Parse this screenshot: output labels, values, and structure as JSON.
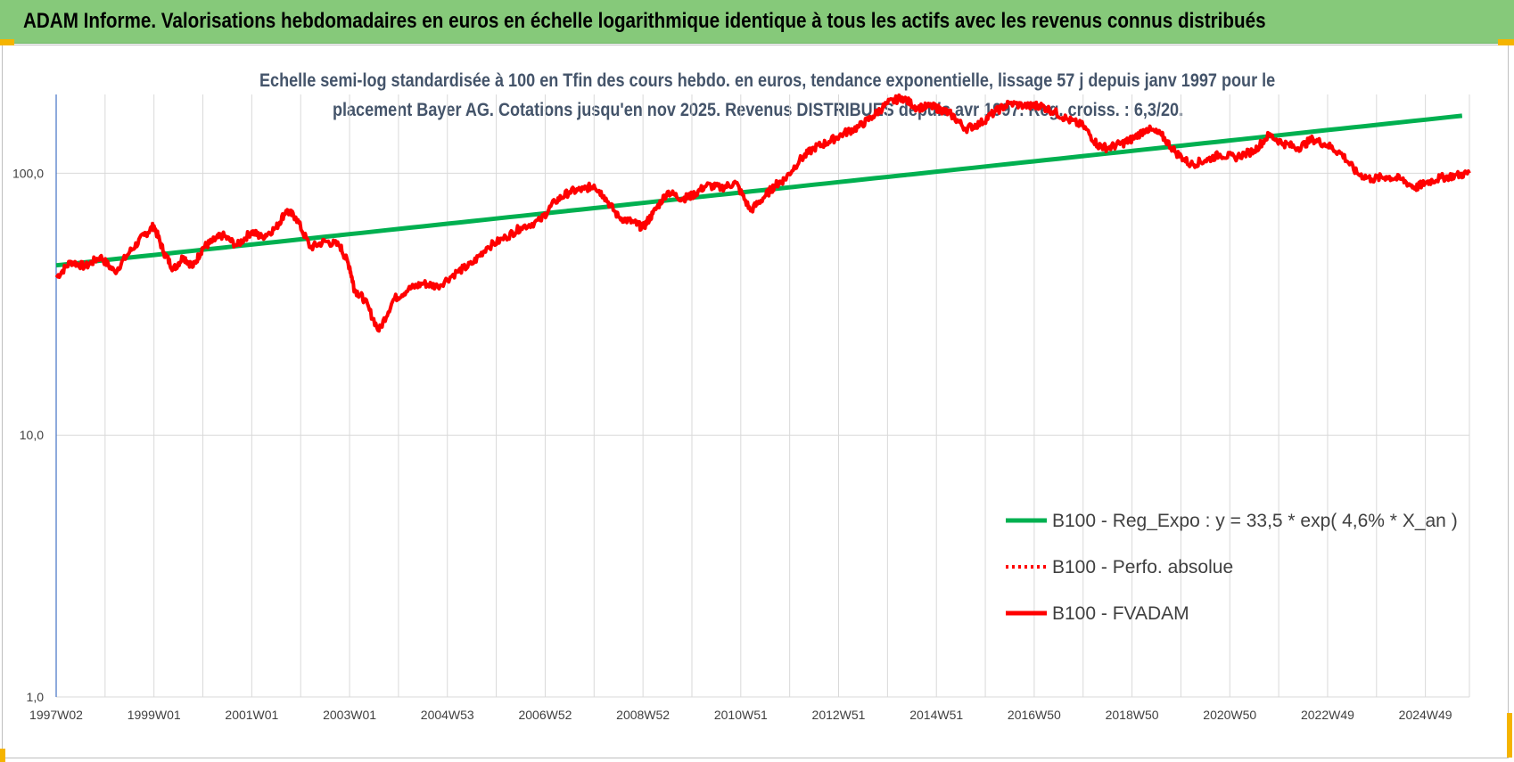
{
  "header": {
    "title": "ADAM Informe. Valorisations hebdomadaires en euros en échelle logarithmique identique à tous les actifs avec les revenus connus distribués"
  },
  "colors": {
    "banner": "#86c97a",
    "regression": "#00b050",
    "fvadam": "#ff0000",
    "title_text": "#44546a",
    "grid": "#d9d9d9",
    "handle": "#f5b400"
  },
  "chart_data": {
    "type": "line",
    "title_line1": "Echelle semi-log standardisée à 100 en Tfin des cours hebdo. en euros, tendance exponentielle, lissage 57 j depuis janv 1997 pour le",
    "title_line2": "placement Bayer AG. Cotations jusqu'en nov 2025. Revenus DISTRIBUES depuis avr 1997. Reg. croiss. : 6,3/20.",
    "y_scale": "log",
    "ylim": [
      1,
      200
    ],
    "y_ticks": [
      1,
      10,
      100
    ],
    "y_tick_labels": [
      "1,0",
      "10,0",
      "100,0"
    ],
    "xlim": [
      1997.0,
      2025.9
    ],
    "x_tick_labels": [
      "1997W02",
      "1999W01",
      "2001W01",
      "2003W01",
      "2004W53",
      "2006W52",
      "2008W52",
      "2010W51",
      "2012W51",
      "2014W51",
      "2016W50",
      "2018W50",
      "2020W50",
      "2022W49",
      "2024W49"
    ],
    "x_tick_years": [
      1997.0,
      1999.0,
      2001.0,
      2003.0,
      2005.0,
      2007.0,
      2009.0,
      2011.0,
      2013.0,
      2015.0,
      2017.0,
      2019.0,
      2021.0,
      2023.0,
      2025.0
    ],
    "grid": "vertical",
    "legend_position": "bottom-right",
    "legend": [
      "B100 - Reg_Expo : y = 33,5 * exp( 4,6% *  X_an )",
      "B100 - Perfo. absolue",
      "B100 - FVADAM"
    ],
    "series": [
      {
        "name": "B100 - Reg_Expo : y = 33,5 * exp( 4,6% *  X_an )",
        "style": "solid",
        "x": [
          1997.0,
          2025.9
        ],
        "values": [
          44.5,
          167
        ]
      },
      {
        "name": "B100 - FVADAM",
        "style": "solid",
        "x": [
          1997.0,
          1997.3,
          1997.6,
          1997.9,
          1998.2,
          1998.5,
          1998.8,
          1999.0,
          1999.2,
          1999.4,
          1999.6,
          1999.8,
          2000.0,
          2000.2,
          2000.4,
          2000.7,
          2001.0,
          2001.2,
          2001.5,
          2001.7,
          2001.9,
          2002.2,
          2002.5,
          2002.8,
          2003.0,
          2003.1,
          2003.3,
          2003.6,
          2003.9,
          2004.2,
          2004.5,
          2004.8,
          2005.2,
          2005.5,
          2005.8,
          2006.2,
          2006.5,
          2006.9,
          2007.2,
          2007.5,
          2007.8,
          2008.0,
          2008.2,
          2008.5,
          2008.8,
          2009.0,
          2009.2,
          2009.5,
          2009.8,
          2010.0,
          2010.3,
          2010.6,
          2010.9,
          2011.2,
          2011.5,
          2011.7,
          2011.9,
          2012.2,
          2012.5,
          2012.8,
          2013.1,
          2013.4,
          2013.7,
          2014.0,
          2014.3,
          2014.6,
          2014.9,
          2015.1,
          2015.3,
          2015.6,
          2015.9,
          2016.2,
          2016.5,
          2016.9,
          2017.1,
          2017.4,
          2017.7,
          2018.0,
          2018.3,
          2018.5,
          2018.8,
          2019.0,
          2019.3,
          2019.6,
          2019.9,
          2020.2,
          2020.5,
          2020.8,
          2021.1,
          2021.5,
          2021.8,
          2022.1,
          2022.4,
          2022.7,
          2023.0,
          2023.3,
          2023.6,
          2023.9,
          2024.2,
          2024.5,
          2024.8,
          2025.0,
          2025.3,
          2025.6,
          2025.9
        ],
        "values": [
          40,
          46,
          44,
          48,
          42,
          50,
          58,
          63,
          50,
          43,
          48,
          44,
          52,
          55,
          58,
          53,
          60,
          57,
          62,
          72,
          68,
          52,
          55,
          53,
          44,
          36,
          33,
          25,
          33,
          36,
          38,
          37,
          42,
          45,
          52,
          57,
          62,
          66,
          78,
          85,
          87,
          90,
          82,
          68,
          65,
          62,
          70,
          85,
          80,
          82,
          90,
          88,
          92,
          72,
          82,
          90,
          95,
          112,
          125,
          132,
          142,
          150,
          165,
          185,
          195,
          178,
          180,
          175,
          168,
          148,
          155,
          172,
          185,
          180,
          182,
          172,
          160,
          152,
          128,
          125,
          130,
          135,
          148,
          140,
          120,
          108,
          112,
          118,
          115,
          122,
          140,
          130,
          125,
          135,
          128,
          118,
          100,
          95,
          97,
          95,
          88,
          92,
          96,
          98,
          100
        ]
      }
    ]
  }
}
